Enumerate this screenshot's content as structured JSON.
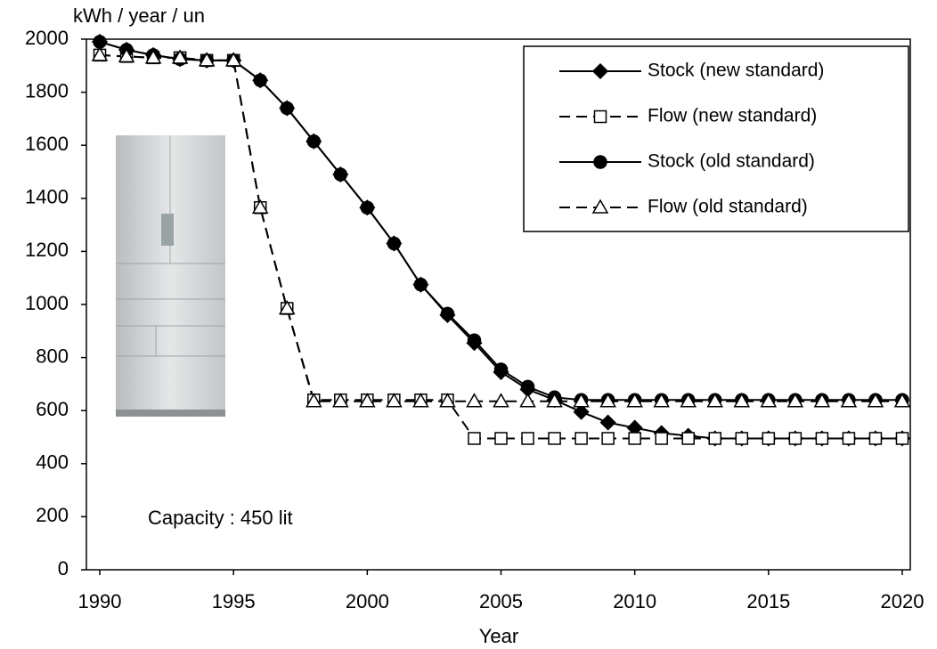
{
  "chart_data": {
    "type": "line",
    "y_label": "kWh / year /  un",
    "x_label": "Year",
    "annotation": "Capacity : 450 lit",
    "x": [
      1990,
      1991,
      1992,
      1993,
      1994,
      1995,
      1996,
      1997,
      1998,
      1999,
      2000,
      2001,
      2002,
      2003,
      2004,
      2005,
      2006,
      2007,
      2008,
      2009,
      2010,
      2011,
      2012,
      2013,
      2014,
      2015,
      2016,
      2017,
      2018,
      2019,
      2020
    ],
    "xlim": [
      1989.5,
      2020.3
    ],
    "xticks": [
      1990,
      1995,
      2000,
      2005,
      2010,
      2015,
      2020
    ],
    "ylim": [
      0,
      2000
    ],
    "yticks": [
      0,
      200,
      400,
      600,
      800,
      1000,
      1200,
      1400,
      1600,
      1800,
      2000
    ],
    "legend_position": "upper right",
    "series": [
      {
        "name": "Stock (new standard)",
        "color": "#000000",
        "marker": "diamond",
        "filled": true,
        "line_style": "solid",
        "values": [
          1990,
          1960,
          1940,
          1925,
          1920,
          1920,
          1845,
          1740,
          1615,
          1490,
          1365,
          1230,
          1075,
          960,
          855,
          745,
          680,
          640,
          595,
          555,
          535,
          515,
          505,
          495,
          495,
          495,
          495,
          495,
          495,
          495,
          495
        ]
      },
      {
        "name": "Flow (new standard)",
        "color": "#000000",
        "marker": "square",
        "filled": false,
        "line_style": "dashed",
        "values": [
          1940,
          1935,
          1930,
          1930,
          1920,
          1920,
          1365,
          985,
          640,
          640,
          640,
          640,
          640,
          640,
          495,
          495,
          495,
          495,
          495,
          495,
          495,
          495,
          495,
          495,
          495,
          495,
          495,
          495,
          495,
          495,
          495
        ]
      },
      {
        "name": "Stock (old standard)",
        "color": "#000000",
        "marker": "circle",
        "filled": true,
        "line_style": "solid",
        "values": [
          1990,
          1960,
          1940,
          1925,
          1920,
          1920,
          1845,
          1740,
          1615,
          1490,
          1365,
          1230,
          1075,
          965,
          865,
          755,
          690,
          650,
          640,
          640,
          640,
          640,
          640,
          640,
          640,
          640,
          640,
          640,
          640,
          640,
          640
        ]
      },
      {
        "name": "Flow (old standard)",
        "color": "#000000",
        "marker": "triangle",
        "filled": false,
        "line_style": "dashed",
        "values": [
          1940,
          1935,
          1930,
          1930,
          1920,
          1920,
          1365,
          985,
          635,
          635,
          635,
          635,
          635,
          635,
          635,
          635,
          635,
          635,
          635,
          635,
          635,
          635,
          635,
          635,
          635,
          635,
          635,
          635,
          635,
          635,
          635
        ]
      }
    ]
  }
}
